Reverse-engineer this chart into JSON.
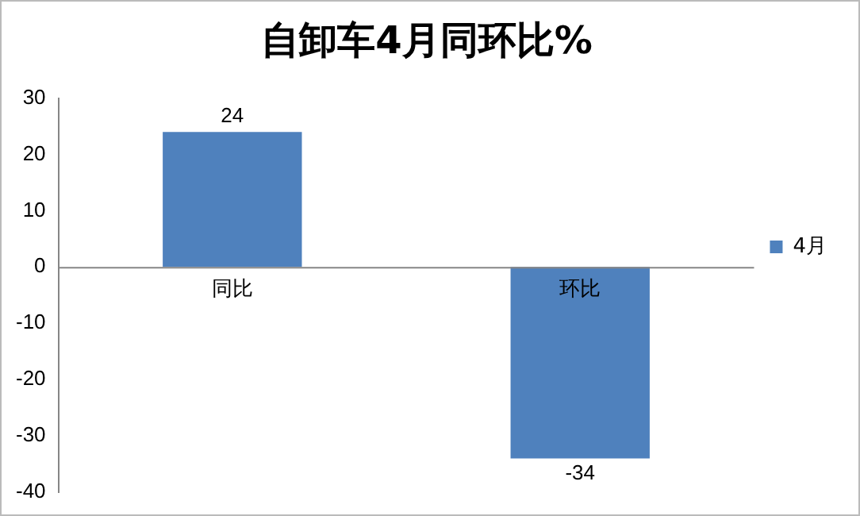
{
  "chart_data": {
    "type": "bar",
    "title": "自卸车4月同环比%",
    "categories": [
      "同比",
      "环比"
    ],
    "series": [
      {
        "name": "4月",
        "color": "#4f81bd",
        "values": [
          24,
          -34
        ]
      }
    ],
    "ylim": [
      -40,
      30
    ],
    "yticks": [
      -40,
      -30,
      -20,
      -10,
      0,
      10,
      20,
      30
    ],
    "grid": false,
    "legend": "right",
    "data_labels": true
  }
}
